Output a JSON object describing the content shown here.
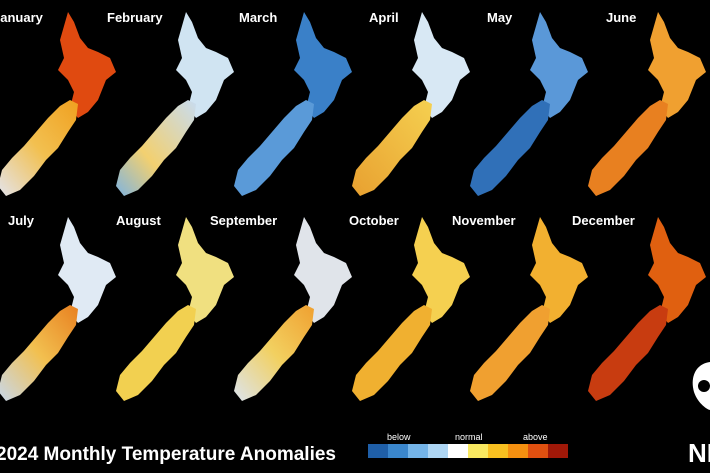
{
  "title": "2024 Monthly Temperature Anomalies",
  "months": [
    "January",
    "February",
    "March",
    "April",
    "May",
    "June",
    "July",
    "August",
    "September",
    "October",
    "November",
    "December"
  ],
  "legend": {
    "labels": [
      "below",
      "normal",
      "above"
    ],
    "colors": [
      "#1f5fa8",
      "#3a86cc",
      "#74b4e8",
      "#aed6f4",
      "#ffffff",
      "#f8e860",
      "#f8c020",
      "#f59010",
      "#e05010",
      "#a01808"
    ]
  },
  "logo": "NI"
}
